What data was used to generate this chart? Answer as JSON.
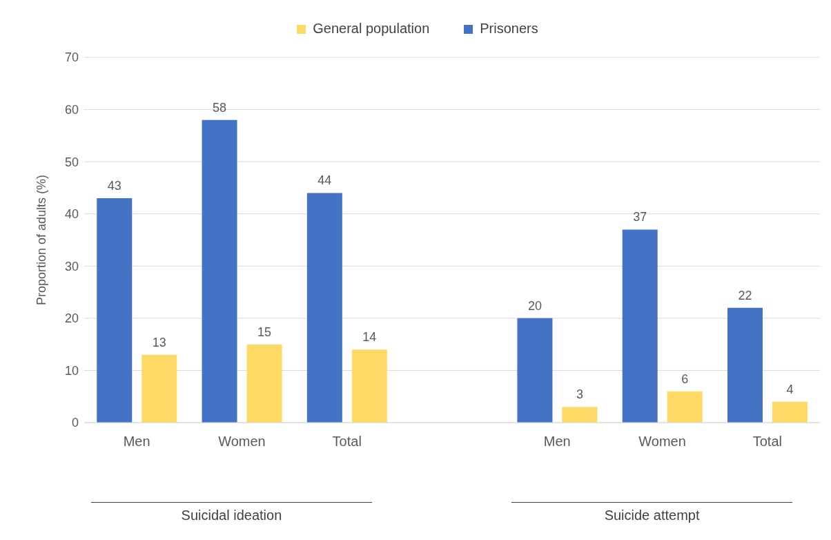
{
  "chart_data": {
    "type": "bar",
    "categories": [
      "Men",
      "Women",
      "Total",
      null,
      "Men",
      "Women",
      "Total"
    ],
    "series": [
      {
        "name": "Prisoners",
        "color": "#4472c4",
        "values": [
          43,
          58,
          44,
          null,
          20,
          37,
          22
        ]
      },
      {
        "name": "General population",
        "color": "#ffd966",
        "values": [
          13,
          15,
          14,
          null,
          3,
          6,
          4
        ]
      }
    ],
    "ylabel": "Proportion of adults (%)",
    "ylim": [
      0,
      70
    ],
    "yticks": [
      0,
      10,
      20,
      30,
      40,
      50,
      60,
      70
    ],
    "grid": "y",
    "legend": "top",
    "data_labels": true,
    "annotations": [
      "Suicidal ideation",
      "Suicide attempt"
    ]
  }
}
